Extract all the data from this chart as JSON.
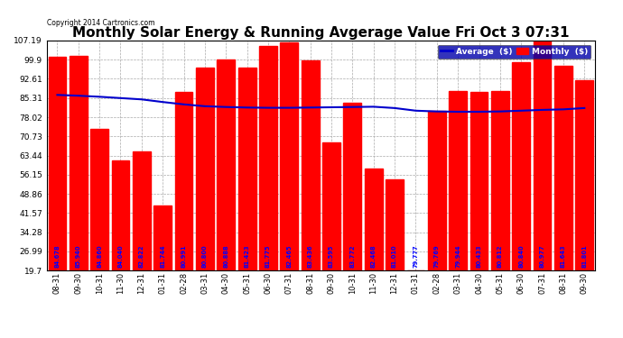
{
  "title": "Monthly Solar Energy & Running Avgerage Value Fri Oct 3 07:31",
  "copyright": "Copyright 2014 Cartronics.com",
  "categories": [
    "08-31",
    "09-30",
    "10-31",
    "11-30",
    "12-31",
    "01-31",
    "02-28",
    "03-31",
    "04-30",
    "05-31",
    "06-30",
    "07-31",
    "08-31",
    "09-30",
    "10-31",
    "11-30",
    "12-31",
    "01-31",
    "02-28",
    "03-31",
    "04-30",
    "05-31",
    "06-30",
    "07-31",
    "08-31",
    "09-30"
  ],
  "bar_values": [
    101.0,
    101.5,
    73.5,
    61.5,
    65.0,
    44.5,
    87.5,
    97.0,
    100.0,
    97.0,
    105.0,
    106.5,
    99.5,
    68.5,
    83.5,
    58.5,
    54.5,
    19.7,
    80.5,
    88.0,
    87.5,
    88.0,
    99.0,
    107.5,
    97.5,
    92.0
  ],
  "bar_labels": [
    "84.678",
    "85.940",
    "84.860",
    "84.040",
    "82.822",
    "81.744",
    "80.991",
    "80.800",
    "80.888",
    "81.423",
    "81.775",
    "82.465",
    "83.436",
    "83.595",
    "83.772",
    "82.468",
    "81.010",
    "79.777",
    "79.769",
    "79.944",
    "80.433",
    "80.812",
    "80.840",
    "80.977",
    "81.643",
    "81.801"
  ],
  "avg_values": [
    86.5,
    86.2,
    85.8,
    85.3,
    84.8,
    83.8,
    82.9,
    82.2,
    81.9,
    81.7,
    81.6,
    81.6,
    81.7,
    81.8,
    81.9,
    82.0,
    81.5,
    80.5,
    80.2,
    80.1,
    80.1,
    80.2,
    80.5,
    80.8,
    81.0,
    81.5
  ],
  "bar_color": "#ff0000",
  "avg_color": "#0000cc",
  "label_color": "#0000ff",
  "background_color": "#ffffff",
  "grid_color": "#aaaaaa",
  "title_fontsize": 11,
  "ylabel_values": [
    19.7,
    26.99,
    34.28,
    41.57,
    48.86,
    56.15,
    63.44,
    70.73,
    78.02,
    85.31,
    92.61,
    99.9,
    107.19
  ],
  "ymin": 19.7,
  "ymax": 107.19,
  "legend_labels": [
    "Average  ($)",
    "Monthly  ($)"
  ]
}
